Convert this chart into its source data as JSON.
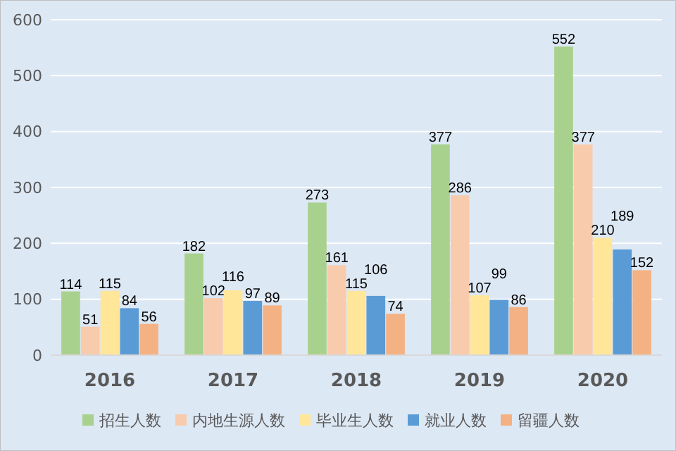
{
  "chart_data": {
    "type": "bar",
    "categories": [
      "2016",
      "2017",
      "2018",
      "2019",
      "2020"
    ],
    "series": [
      {
        "name": "招生人数",
        "color": "#a9d18e",
        "values": [
          114,
          182,
          273,
          377,
          552
        ]
      },
      {
        "name": "内地生源人数",
        "color": "#f8cbad",
        "values": [
          51,
          102,
          161,
          286,
          377
        ]
      },
      {
        "name": "毕业生人数",
        "color": "#ffe699",
        "values": [
          115,
          116,
          115,
          107,
          210
        ]
      },
      {
        "name": "就业人数",
        "color": "#5b9bd5",
        "values": [
          84,
          97,
          106,
          99,
          189
        ]
      },
      {
        "name": "留疆人数",
        "color": "#f4b183",
        "values": [
          56,
          89,
          74,
          86,
          152
        ]
      }
    ],
    "ylim": [
      0,
      600
    ],
    "yticks": [
      0,
      100,
      200,
      300,
      400,
      500,
      600
    ],
    "grid": "y",
    "legend": "bottom",
    "data_labels": true
  }
}
